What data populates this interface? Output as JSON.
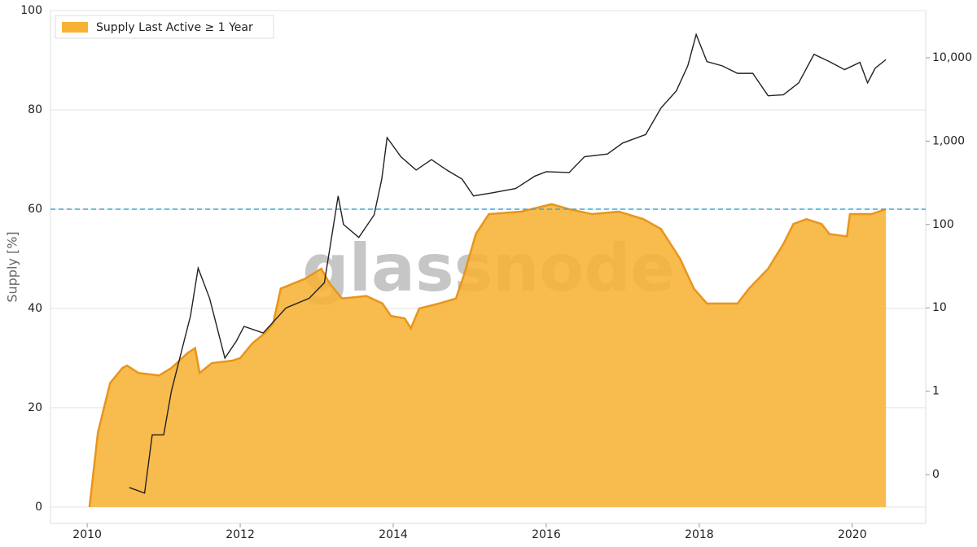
{
  "chart_data": {
    "type": "area",
    "watermark": "glassnode",
    "y_label": "Supply [%]",
    "legend": "upper left",
    "grid": true,
    "xlim": [
      2009.52,
      2020.96
    ],
    "xticks": [
      2010,
      2012,
      2014,
      2016,
      2018,
      2020
    ],
    "ylim": [
      -3.3,
      100
    ],
    "yticks": [
      0,
      20,
      40,
      60,
      80,
      100
    ],
    "y2_log": true,
    "y2lim": [
      0.026,
      36800
    ],
    "y2ticks": [
      {
        "value": 0.1,
        "label": "0"
      },
      1,
      10,
      100,
      {
        "value": 1000,
        "label": "1,000"
      },
      {
        "value": 10000,
        "label": "10,000"
      }
    ],
    "hline": {
      "value": 60,
      "color": "#3fa9d6"
    },
    "series": [
      {
        "name": "Supply Last Active ≥ 1 Year",
        "type": "area",
        "color": "#f7b234",
        "line_color": "#e8951c",
        "x": [
          2010.03,
          2010.14,
          2010.3,
          2010.46,
          2010.52,
          2010.67,
          2010.94,
          2011.1,
          2011.31,
          2011.41,
          2011.47,
          2011.63,
          2011.9,
          2012.0,
          2012.16,
          2012.32,
          2012.43,
          2012.53,
          2012.69,
          2012.85,
          2013.06,
          2013.17,
          2013.33,
          2013.65,
          2013.86,
          2013.97,
          2014.15,
          2014.23,
          2014.34,
          2014.6,
          2014.82,
          2014.93,
          2015.08,
          2015.25,
          2015.67,
          2016.07,
          2016.3,
          2016.6,
          2016.95,
          2017.27,
          2017.5,
          2017.75,
          2017.93,
          2018.1,
          2018.5,
          2018.65,
          2018.9,
          2019.1,
          2019.23,
          2019.4,
          2019.6,
          2019.7,
          2019.93,
          2019.97,
          2020.25,
          2020.44
        ],
        "values": [
          0,
          15,
          25,
          28,
          28.5,
          27,
          26.5,
          28,
          31,
          32,
          27,
          29,
          29.5,
          30,
          33,
          35,
          37,
          44,
          45,
          46,
          48,
          45,
          42,
          42.5,
          41,
          38.5,
          38,
          36,
          40,
          41,
          42,
          47,
          55,
          59,
          59.5,
          61,
          60,
          59,
          59.5,
          58,
          56,
          50,
          44,
          41,
          41,
          44,
          48,
          53,
          57,
          58,
          57,
          55,
          54.5,
          59,
          59,
          60
        ]
      },
      {
        "type": "line",
        "axis": "y2",
        "color": "#222222",
        "x": [
          2010.55,
          2010.75,
          2010.85,
          2011.0,
          2011.1,
          2011.35,
          2011.45,
          2011.6,
          2011.8,
          2011.95,
          2012.05,
          2012.3,
          2012.6,
          2012.9,
          2013.1,
          2013.28,
          2013.35,
          2013.55,
          2013.75,
          2013.85,
          2013.92,
          2014.1,
          2014.3,
          2014.5,
          2014.7,
          2014.9,
          2015.05,
          2015.3,
          2015.6,
          2015.85,
          2016.0,
          2016.3,
          2016.5,
          2016.8,
          2017.0,
          2017.3,
          2017.5,
          2017.7,
          2017.85,
          2017.96,
          2018.1,
          2018.3,
          2018.5,
          2018.7,
          2018.9,
          2019.1,
          2019.3,
          2019.5,
          2019.7,
          2019.9,
          2020.1,
          2020.2,
          2020.3,
          2020.44
        ],
        "values": [
          0.07,
          0.06,
          0.3,
          0.3,
          1,
          8,
          30,
          13,
          2.5,
          4,
          6,
          5,
          10,
          13,
          20,
          220,
          100,
          70,
          130,
          350,
          1100,
          650,
          450,
          600,
          450,
          350,
          220,
          240,
          270,
          380,
          430,
          420,
          650,
          700,
          950,
          1200,
          2500,
          4000,
          8000,
          19000,
          9000,
          8000,
          6500,
          6500,
          3500,
          3600,
          5000,
          11000,
          9000,
          7200,
          8800,
          5000,
          7500,
          9500
        ]
      }
    ]
  }
}
